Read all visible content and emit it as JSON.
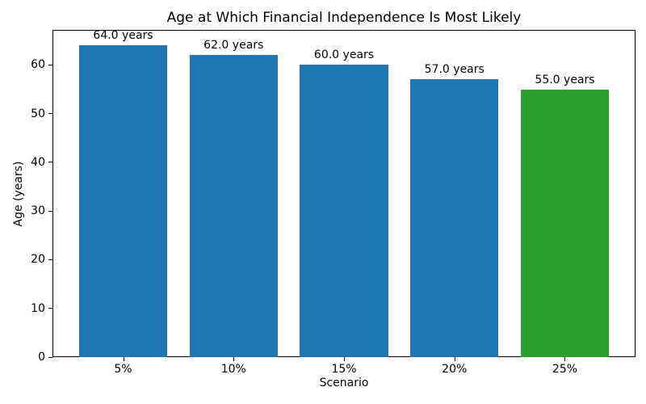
{
  "chart_data": {
    "type": "bar",
    "title": "Age at Which Financial Independence Is Most Likely",
    "xlabel": "Scenario",
    "ylabel": "Age (years)",
    "categories": [
      "5%",
      "10%",
      "15%",
      "20%",
      "25%"
    ],
    "values": [
      64.0,
      62.0,
      60.0,
      57.0,
      55.0
    ],
    "bar_labels": [
      "64.0 years",
      "62.0 years",
      "60.0 years",
      "57.0 years",
      "55.0 years"
    ],
    "bar_colors": [
      "#1f77b4",
      "#1f77b4",
      "#1f77b4",
      "#1f77b4",
      "#2ca02c"
    ],
    "ylim": [
      0,
      67.2
    ],
    "yticks": [
      0,
      10,
      20,
      30,
      40,
      50,
      60
    ],
    "grid": false,
    "legend": null,
    "spine_color": "#000000",
    "background_color": "#ffffff"
  }
}
